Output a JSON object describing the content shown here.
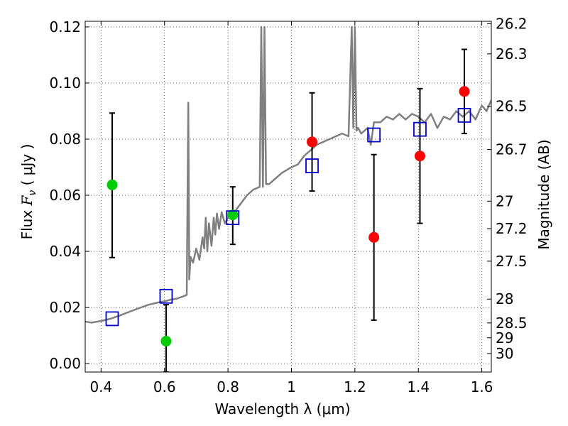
{
  "chart_data": {
    "type": "scatter",
    "title": "",
    "xlabel": "Wavelength  λ (μm)",
    "ylabel": "Flux  F_ν  ( μJy )",
    "ylabel_right": "Magnitude (AB)",
    "xlim": [
      0.35,
      1.63
    ],
    "ylim": [
      -0.003,
      0.122
    ],
    "grid": true,
    "x_ticks": [
      0.4,
      0.6,
      0.8,
      1.0,
      1.2,
      1.4,
      1.6
    ],
    "x_tick_labels": [
      "0.4",
      "0.6",
      "0.8",
      "1",
      "1.2",
      "1.4",
      "1.6"
    ],
    "y_ticks": [
      0.0,
      0.02,
      0.04,
      0.06,
      0.08,
      0.1,
      0.12
    ],
    "y_tick_labels": [
      "0.00",
      "0.02",
      "0.04",
      "0.06",
      "0.08",
      "0.10",
      "0.12"
    ],
    "right_ticks": [
      {
        "label": "26.2",
        "flux": 0.1211
      },
      {
        "label": "26.3",
        "flux": 0.1104
      },
      {
        "label": "26.5",
        "flux": 0.0917
      },
      {
        "label": "26.7",
        "flux": 0.0763
      },
      {
        "label": "27",
        "flux": 0.0579
      },
      {
        "label": "27.2",
        "flux": 0.0481
      },
      {
        "label": "27.5",
        "flux": 0.0365
      },
      {
        "label": "28",
        "flux": 0.023
      },
      {
        "label": "28.5",
        "flux": 0.0145
      },
      {
        "label": "29",
        "flux": 0.0092
      },
      {
        "label": "30",
        "flux": 0.0036
      }
    ],
    "series": [
      {
        "type": "line",
        "color": "#808080",
        "x": [
          0.35,
          0.37,
          0.4,
          0.43,
          0.46,
          0.49,
          0.52,
          0.55,
          0.58,
          0.6,
          0.62,
          0.64,
          0.66,
          0.67,
          0.675,
          0.678,
          0.682,
          0.69,
          0.7,
          0.71,
          0.72,
          0.725,
          0.73,
          0.735,
          0.74,
          0.748,
          0.755,
          0.76,
          0.765,
          0.772,
          0.78,
          0.79,
          0.8,
          0.81,
          0.82,
          0.84,
          0.86,
          0.88,
          0.9,
          0.905,
          0.91,
          0.915,
          0.92,
          0.93,
          0.95,
          0.97,
          1.0,
          1.02,
          1.04,
          1.06,
          1.08,
          1.1,
          1.12,
          1.14,
          1.16,
          1.18,
          1.19,
          1.195,
          1.2,
          1.205,
          1.21,
          1.22,
          1.24,
          1.25,
          1.26,
          1.28,
          1.3,
          1.32,
          1.34,
          1.36,
          1.38,
          1.4,
          1.42,
          1.44,
          1.46,
          1.48,
          1.5,
          1.52,
          1.54,
          1.56,
          1.58,
          1.6,
          1.615,
          1.63
        ],
        "y": [
          0.015,
          0.0146,
          0.0152,
          0.016,
          0.0172,
          0.0185,
          0.0198,
          0.021,
          0.0218,
          0.0222,
          0.0228,
          0.0232,
          0.024,
          0.0245,
          0.093,
          0.03,
          0.038,
          0.036,
          0.041,
          0.037,
          0.045,
          0.041,
          0.052,
          0.04,
          0.05,
          0.042,
          0.052,
          0.046,
          0.0535,
          0.048,
          0.054,
          0.05,
          0.052,
          0.054,
          0.054,
          0.057,
          0.06,
          0.062,
          0.063,
          0.12,
          0.063,
          0.12,
          0.064,
          0.064,
          0.066,
          0.068,
          0.07,
          0.071,
          0.074,
          0.076,
          0.078,
          0.079,
          0.08,
          0.081,
          0.082,
          0.081,
          0.12,
          0.084,
          0.12,
          0.083,
          0.084,
          0.082,
          0.084,
          0.078,
          0.086,
          0.086,
          0.088,
          0.087,
          0.089,
          0.087,
          0.089,
          0.088,
          0.086,
          0.089,
          0.084,
          0.088,
          0.087,
          0.09,
          0.088,
          0.09,
          0.087,
          0.092,
          0.09,
          0.094
        ]
      },
      {
        "type": "scatter",
        "marker": "circle",
        "color": "#00cc00",
        "points": [
          {
            "x": 0.435,
            "y": 0.0637,
            "ylo": 0.0378,
            "yhi": 0.0893
          },
          {
            "x": 0.605,
            "y": 0.008,
            "ylo": -0.003,
            "yhi": 0.021
          },
          {
            "x": 0.815,
            "y": 0.053,
            "ylo": 0.0425,
            "yhi": 0.063
          }
        ]
      },
      {
        "type": "scatter",
        "marker": "circle",
        "color": "#ff0000",
        "points": [
          {
            "x": 1.065,
            "y": 0.079,
            "ylo": 0.0615,
            "yhi": 0.0965
          },
          {
            "x": 1.26,
            "y": 0.045,
            "ylo": 0.0155,
            "yhi": 0.0745
          },
          {
            "x": 1.405,
            "y": 0.074,
            "ylo": 0.05,
            "yhi": 0.098
          },
          {
            "x": 1.545,
            "y": 0.097,
            "ylo": 0.082,
            "yhi": 0.112
          }
        ]
      },
      {
        "type": "scatter",
        "marker": "square",
        "color": "#0000cc",
        "points": [
          {
            "x": 0.435,
            "y": 0.016
          },
          {
            "x": 0.605,
            "y": 0.024
          },
          {
            "x": 0.815,
            "y": 0.052
          },
          {
            "x": 1.065,
            "y": 0.0705
          },
          {
            "x": 1.26,
            "y": 0.0815
          },
          {
            "x": 1.405,
            "y": 0.0835
          },
          {
            "x": 1.545,
            "y": 0.0885
          }
        ]
      }
    ]
  }
}
